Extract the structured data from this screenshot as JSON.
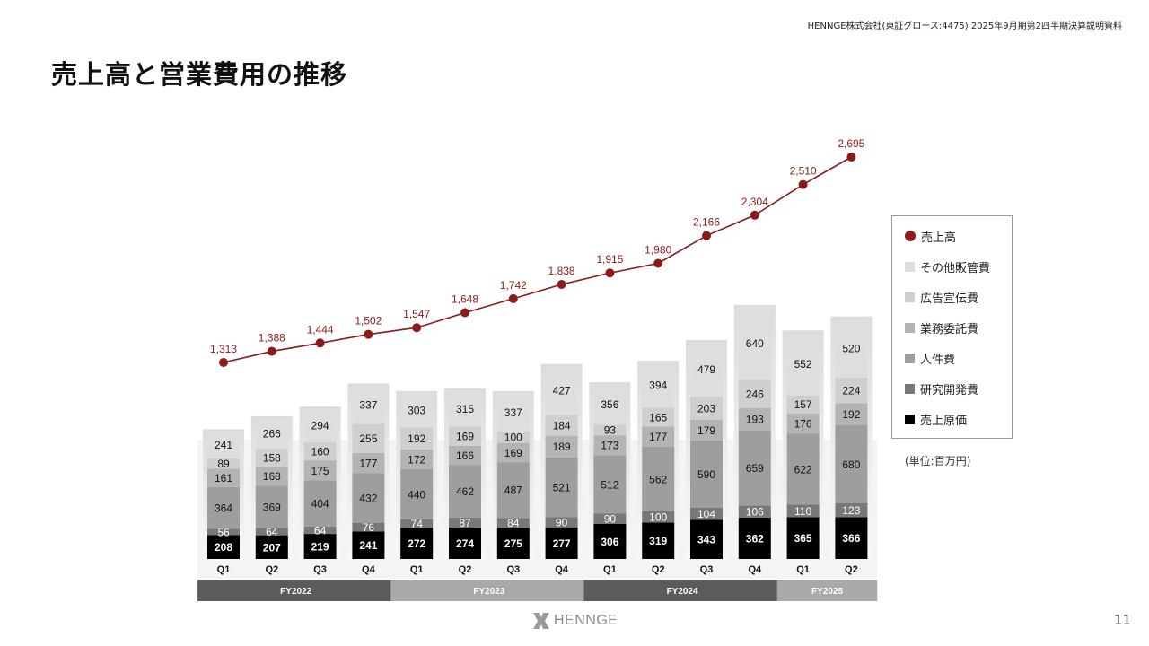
{
  "header_note": "HENNGE株式会社(東証グロース:4475) 2025年9月期第2四半期決算説明資料",
  "title": "売上高と営業費用の推移",
  "unit_note": "(単位:百万円)",
  "logo": {
    "text": "HENNGE",
    "icon": "henngex-logo-icon"
  },
  "page_number": "11",
  "colors": {
    "revenue": "#8b1a1a",
    "other_sga": "#dedede",
    "advertising": "#cfcfcf",
    "outsourcing": "#b4b4b4",
    "personnel": "#9e9e9e",
    "rnd": "#787878",
    "cogs": "#000000",
    "fy_dark": "#5b5b5b",
    "fy_light": "#a9a9a9"
  },
  "legend": [
    {
      "key": "revenue",
      "label": "売上高",
      "shape": "dot"
    },
    {
      "key": "other_sga",
      "label": "その他販管費",
      "shape": "square"
    },
    {
      "key": "advertising",
      "label": "広告宣伝費",
      "shape": "square"
    },
    {
      "key": "outsourcing",
      "label": "業務委託費",
      "shape": "square"
    },
    {
      "key": "personnel",
      "label": "人件費",
      "shape": "square"
    },
    {
      "key": "rnd",
      "label": "研究開発費",
      "shape": "square"
    },
    {
      "key": "cogs",
      "label": "売上原価",
      "shape": "square"
    }
  ],
  "chart_data": {
    "type": "bar",
    "stacked": true,
    "categories": [
      "Q1",
      "Q2",
      "Q3",
      "Q4",
      "Q1",
      "Q2",
      "Q3",
      "Q4",
      "Q1",
      "Q2",
      "Q3",
      "Q4",
      "Q1",
      "Q2"
    ],
    "fiscal_years": [
      {
        "label": "FY2022",
        "start": 0,
        "count": 4,
        "tone": "dark"
      },
      {
        "label": "FY2023",
        "start": 4,
        "count": 4,
        "tone": "light"
      },
      {
        "label": "FY2024",
        "start": 8,
        "count": 4,
        "tone": "dark"
      },
      {
        "label": "FY2025",
        "start": 12,
        "count": 2,
        "tone": "light"
      }
    ],
    "series": [
      {
        "key": "cogs",
        "name": "売上原価",
        "values": [
          208,
          207,
          219,
          241,
          272,
          274,
          275,
          277,
          306,
          319,
          343,
          362,
          365,
          366
        ]
      },
      {
        "key": "rnd",
        "name": "研究開発費",
        "values": [
          56,
          64,
          64,
          76,
          74,
          87,
          84,
          90,
          90,
          100,
          104,
          106,
          110,
          123
        ]
      },
      {
        "key": "personnel",
        "name": "人件費",
        "values": [
          364,
          369,
          404,
          432,
          440,
          462,
          487,
          521,
          512,
          562,
          590,
          659,
          622,
          680
        ]
      },
      {
        "key": "outsourcing",
        "name": "業務委託費",
        "values": [
          161,
          168,
          175,
          177,
          172,
          166,
          169,
          189,
          173,
          177,
          179,
          193,
          176,
          192
        ]
      },
      {
        "key": "advertising",
        "name": "広告宣伝費",
        "values": [
          89,
          158,
          160,
          255,
          192,
          169,
          100,
          184,
          93,
          165,
          203,
          246,
          157,
          224
        ]
      },
      {
        "key": "other_sga",
        "name": "その他販管費",
        "values": [
          241,
          266,
          294,
          337,
          303,
          315,
          337,
          427,
          356,
          394,
          479,
          640,
          552,
          520
        ]
      }
    ],
    "line": {
      "key": "revenue",
      "name": "売上高",
      "values": [
        1313,
        1388,
        1444,
        1502,
        1547,
        1648,
        1742,
        1838,
        1915,
        1980,
        2166,
        2304,
        2510,
        2695
      ],
      "labels": [
        "1,313",
        "1,388",
        "1,444",
        "1,502",
        "1,547",
        "1,648",
        "1,742",
        "1,838",
        "1,915",
        "1,980",
        "2,166",
        "2,304",
        "2,510",
        "2,695"
      ]
    }
  }
}
